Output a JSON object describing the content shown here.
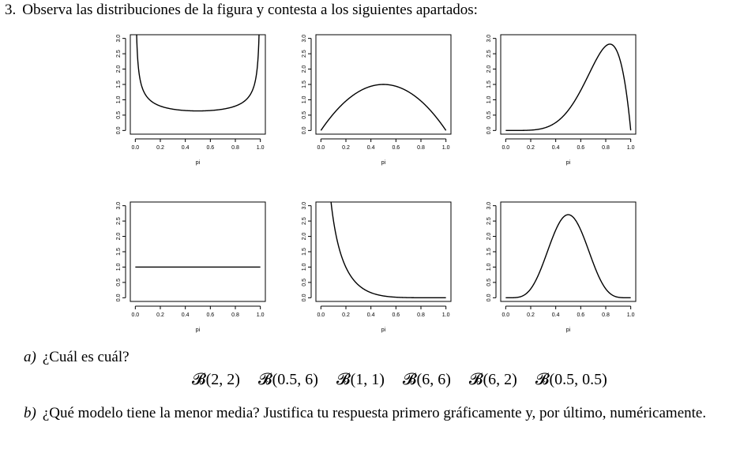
{
  "question": {
    "number": "3.",
    "text": "Observa las distribuciones de la figura y contesta a los siguientes apartados:"
  },
  "chart_data": [
    {
      "type": "line",
      "pdf": "beta",
      "alpha": 0.5,
      "beta": 0.5,
      "xlabel": "pi",
      "xlim": [
        0,
        1
      ],
      "ylim": [
        0,
        3
      ],
      "xticks": [
        "0.0",
        "0.2",
        "0.4",
        "0.6",
        "0.8",
        "1.0"
      ],
      "yticks": [
        "0.0",
        "0.5",
        "1.0",
        "1.5",
        "2.0",
        "2.5",
        "3.0"
      ]
    },
    {
      "type": "line",
      "pdf": "beta",
      "alpha": 2,
      "beta": 2,
      "xlabel": "pi",
      "xlim": [
        0,
        1
      ],
      "ylim": [
        0,
        3
      ],
      "xticks": [
        "0.0",
        "0.2",
        "0.4",
        "0.6",
        "0.8",
        "1.0"
      ],
      "yticks": [
        "0.0",
        "0.5",
        "1.0",
        "1.5",
        "2.0",
        "2.5",
        "3.0"
      ]
    },
    {
      "type": "line",
      "pdf": "beta",
      "alpha": 6,
      "beta": 2,
      "xlabel": "pi",
      "xlim": [
        0,
        1
      ],
      "ylim": [
        0,
        3
      ],
      "xticks": [
        "0.0",
        "0.2",
        "0.4",
        "0.6",
        "0.8",
        "1.0"
      ],
      "yticks": [
        "0.0",
        "0.5",
        "1.0",
        "1.5",
        "2.0",
        "2.5",
        "3.0"
      ]
    },
    {
      "type": "line",
      "pdf": "beta",
      "alpha": 1,
      "beta": 1,
      "xlabel": "pi",
      "xlim": [
        0,
        1
      ],
      "ylim": [
        0,
        3
      ],
      "xticks": [
        "0.0",
        "0.2",
        "0.4",
        "0.6",
        "0.8",
        "1.0"
      ],
      "yticks": [
        "0.0",
        "0.5",
        "1.0",
        "1.5",
        "2.0",
        "2.5",
        "3.0"
      ]
    },
    {
      "type": "line",
      "pdf": "beta",
      "alpha": 0.5,
      "beta": 6,
      "xlabel": "pi",
      "xlim": [
        0,
        1
      ],
      "ylim": [
        0,
        3
      ],
      "xticks": [
        "0.0",
        "0.2",
        "0.4",
        "0.6",
        "0.8",
        "1.0"
      ],
      "yticks": [
        "0.0",
        "0.5",
        "1.0",
        "1.5",
        "2.0",
        "2.5",
        "3.0"
      ]
    },
    {
      "type": "line",
      "pdf": "beta",
      "alpha": 6,
      "beta": 6,
      "xlabel": "pi",
      "xlim": [
        0,
        1
      ],
      "ylim": [
        0,
        3
      ],
      "xticks": [
        "0.0",
        "0.2",
        "0.4",
        "0.6",
        "0.8",
        "1.0"
      ],
      "yticks": [
        "0.0",
        "0.5",
        "1.0",
        "1.5",
        "2.0",
        "2.5",
        "3.0"
      ]
    }
  ],
  "part_a": {
    "label": "a)",
    "text": "¿Cuál es cuál?",
    "models": [
      "𝓑(2, 2)",
      "𝓑(0.5, 6)",
      "𝓑(1, 1)",
      "𝓑(6, 6)",
      "𝓑(6, 2)",
      "𝓑(0.5, 0.5)"
    ]
  },
  "part_b": {
    "label": "b)",
    "text": "¿Qué modelo tiene la menor media? Justifica tu respuesta primero gráficamente y, por último, numéricamente."
  }
}
